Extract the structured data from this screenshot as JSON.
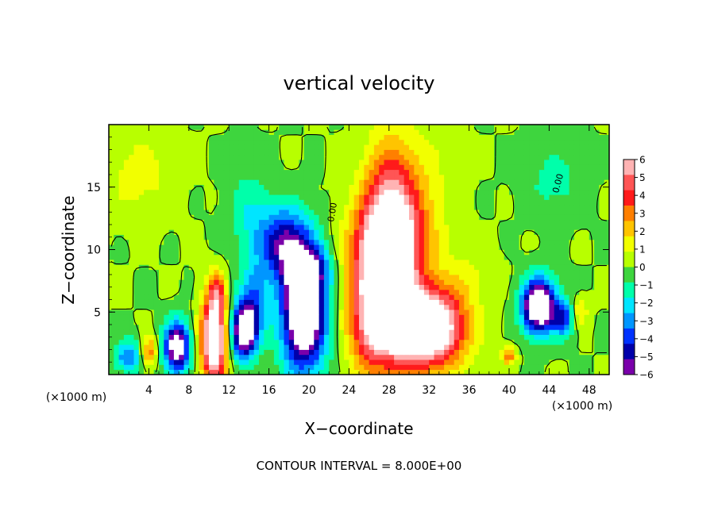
{
  "chart_data": {
    "type": "heatmap",
    "title": "vertical velocity",
    "xlabel": "X−coordinate",
    "ylabel": "Z−coordinate",
    "x_unit_label": "(×1000 m)",
    "y_unit_label": "(×1000 m)",
    "xlim": [
      0,
      50
    ],
    "ylim": [
      0,
      20
    ],
    "x_ticks": [
      4,
      8,
      12,
      16,
      20,
      24,
      28,
      32,
      36,
      40,
      44,
      48
    ],
    "y_ticks": [
      5,
      10,
      15
    ],
    "colorbar": {
      "range": [
        -6,
        6
      ],
      "ticks": [
        6,
        5,
        4,
        3,
        2,
        1,
        0,
        -1,
        -2,
        -3,
        -4,
        -5,
        -6
      ],
      "tick_labels": [
        "6",
        "5",
        "4",
        "3",
        "2",
        "1",
        "0",
        "−1",
        "−2",
        "−3",
        "−4",
        "−5",
        "−6"
      ],
      "colors": [
        "#ffb3b3",
        "#ff5555",
        "#ff1a1a",
        "#ff7f00",
        "#ffc400",
        "#f2ff00",
        "#b8ff00",
        "#3ed53e",
        "#00ffaa",
        "#00e5ff",
        "#0096ff",
        "#0033ff",
        "#0000aa",
        "#7a00aa"
      ]
    },
    "contour_labels": [
      "0.00",
      "0.00"
    ],
    "contour_interval_text": "CONTOUR INTERVAL = 8.000E+00",
    "features": [
      {
        "x": 2,
        "z": 1.5,
        "sx": 1.0,
        "sz": 0.9,
        "w": -3.5
      },
      {
        "x": 4,
        "z": 1.8,
        "sx": 0.6,
        "sz": 0.8,
        "w": 3.5
      },
      {
        "x": 6.8,
        "z": 2.2,
        "sx": 0.9,
        "sz": 1.4,
        "w": -7.5
      },
      {
        "x": 10.5,
        "z": 2.8,
        "sx": 0.9,
        "sz": 2.4,
        "w": 8.5
      },
      {
        "x": 10.8,
        "z": 6.5,
        "sx": 0.6,
        "sz": 1.2,
        "w": 3
      },
      {
        "x": 13.5,
        "z": 3.5,
        "sx": 0.9,
        "sz": 1.5,
        "w": -8
      },
      {
        "x": 14.5,
        "z": 6,
        "sx": 1.0,
        "sz": 2,
        "w": -3
      },
      {
        "x": 17.5,
        "z": 10.5,
        "sx": 1.8,
        "sz": 2,
        "w": -5
      },
      {
        "x": 19.5,
        "z": 5,
        "sx": 1.6,
        "sz": 3.2,
        "w": -9
      },
      {
        "x": 20,
        "z": 8.5,
        "sx": 1.5,
        "sz": 1.2,
        "w": -3
      },
      {
        "x": 14,
        "z": 13,
        "sx": 1.5,
        "sz": 2.5,
        "w": -1.5
      },
      {
        "x": 27.5,
        "z": 7,
        "sx": 2.2,
        "sz": 4,
        "w": 9
      },
      {
        "x": 28,
        "z": 14,
        "sx": 1.8,
        "sz": 3.5,
        "w": 3.5
      },
      {
        "x": 28.5,
        "z": 11,
        "sx": 2.5,
        "sz": 2,
        "w": 2.5
      },
      {
        "x": 32,
        "z": 3.8,
        "sx": 2.5,
        "sz": 2.2,
        "w": 9
      },
      {
        "x": 30.5,
        "z": 14.5,
        "sx": 2.5,
        "sz": 3.5,
        "w": 1.5
      },
      {
        "x": 26,
        "z": 3,
        "sx": 1.5,
        "sz": 2,
        "w": 1.5
      },
      {
        "x": 43,
        "z": 5.5,
        "sx": 1.2,
        "sz": 1.5,
        "w": -9
      },
      {
        "x": 45.5,
        "z": 4.5,
        "sx": 0.7,
        "sz": 1,
        "w": -4
      },
      {
        "x": 47,
        "z": 5,
        "sx": 0.6,
        "sz": 0.8,
        "w": 2
      },
      {
        "x": 44.5,
        "z": 15.5,
        "sx": 2,
        "sz": 2,
        "w": -1.2
      },
      {
        "x": 40,
        "z": 1.5,
        "sx": 0.5,
        "sz": 0.5,
        "w": 3
      },
      {
        "x": 36,
        "z": 8,
        "sx": 2,
        "sz": 1.5,
        "w": 0.8
      },
      {
        "x": 3,
        "z": 16,
        "sx": 2.5,
        "sz": 2.5,
        "w": 1.2
      }
    ]
  }
}
